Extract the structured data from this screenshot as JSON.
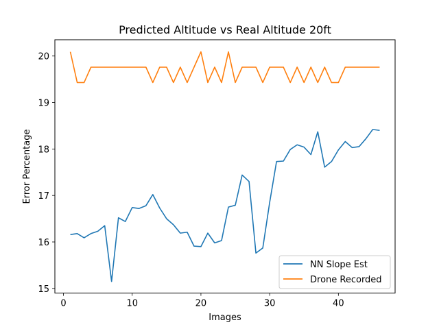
{
  "chart_data": {
    "type": "line",
    "title": "Predicted Altitude vs Real Altitude 20ft",
    "xlabel": "Images",
    "ylabel": "Error Percentage",
    "xlim": [
      -1.25,
      48.25
    ],
    "ylim": [
      14.9,
      20.35
    ],
    "xticks": [
      0,
      10,
      20,
      30,
      40
    ],
    "yticks": [
      15,
      16,
      17,
      18,
      19,
      20
    ],
    "grid": false,
    "legend_position": "lower-right",
    "x": [
      1,
      2,
      3,
      4,
      5,
      6,
      7,
      8,
      9,
      10,
      11,
      12,
      13,
      14,
      15,
      16,
      17,
      18,
      19,
      20,
      21,
      22,
      23,
      24,
      25,
      26,
      27,
      28,
      29,
      30,
      31,
      32,
      33,
      34,
      35,
      36,
      37,
      38,
      39,
      40,
      41,
      42,
      43,
      44,
      45,
      46
    ],
    "series": [
      {
        "name": "NN Slope Est",
        "color": "#1f77b4",
        "values": [
          16.16,
          16.18,
          16.09,
          16.18,
          16.23,
          16.35,
          15.15,
          16.52,
          16.44,
          16.74,
          16.72,
          16.78,
          17.02,
          16.73,
          16.5,
          16.37,
          16.19,
          16.21,
          15.91,
          15.9,
          16.19,
          15.98,
          16.03,
          16.75,
          16.79,
          17.44,
          17.3,
          15.76,
          15.87,
          16.85,
          17.73,
          17.74,
          17.99,
          18.09,
          18.04,
          17.88,
          18.37,
          17.61,
          17.73,
          17.98,
          18.16,
          18.03,
          18.05,
          18.22,
          18.42,
          18.4
        ]
      },
      {
        "name": "Drone Recorded",
        "color": "#ff7f0e",
        "values": [
          20.09,
          19.43,
          19.43,
          19.76,
          19.76,
          19.76,
          19.76,
          19.76,
          19.76,
          19.76,
          19.76,
          19.76,
          19.43,
          19.76,
          19.76,
          19.43,
          19.76,
          19.43,
          19.76,
          20.09,
          19.43,
          19.76,
          19.43,
          20.09,
          19.43,
          19.76,
          19.76,
          19.76,
          19.43,
          19.76,
          19.76,
          19.76,
          19.43,
          19.76,
          19.43,
          19.76,
          19.43,
          19.76,
          19.43,
          19.43,
          19.76,
          19.76,
          19.76,
          19.76,
          19.76,
          19.76
        ]
      }
    ]
  }
}
